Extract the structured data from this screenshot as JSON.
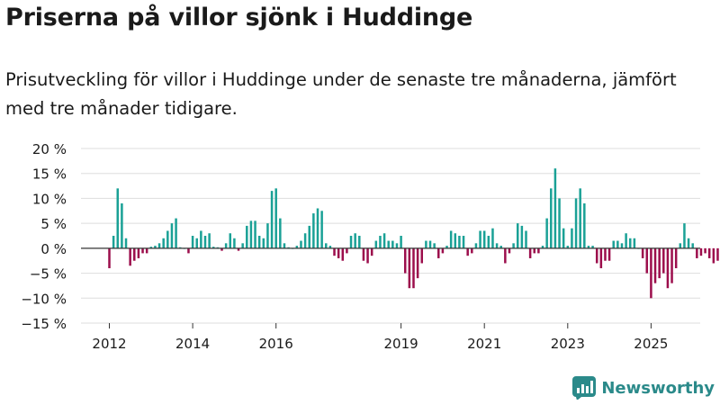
{
  "title": "Priserna på villor sjönk i Huddinge",
  "subtitle": "Prisutveckling för villor i Huddinge under de senaste tre månaderna, jämfört med tre månader tidigare.",
  "brand": {
    "name": "Newsworthy",
    "logo_icon": "bar-chart-logo-icon"
  },
  "colors": {
    "positive": "#1aa196",
    "negative": "#9c0e4c",
    "axis": "#333333",
    "grid": "#dddddd",
    "brand": "#2b8a8a"
  },
  "chart_data": {
    "type": "bar",
    "title": "",
    "xlabel": "",
    "ylabel": "",
    "ylim": [
      -15,
      20
    ],
    "y_ticks": [
      {
        "value": 20,
        "label": "20 %"
      },
      {
        "value": 15,
        "label": "15 %"
      },
      {
        "value": 10,
        "label": "10 %"
      },
      {
        "value": 5,
        "label": "5 %"
      },
      {
        "value": 0,
        "label": "0 %"
      },
      {
        "value": -5,
        "label": "−5 %"
      },
      {
        "value": -10,
        "label": "−10 %"
      },
      {
        "value": -15,
        "label": "−15 %"
      }
    ],
    "x_ticks": [
      {
        "index": 0,
        "label": "2012"
      },
      {
        "index": 20,
        "label": "2014"
      },
      {
        "index": 40,
        "label": "2016"
      },
      {
        "index": 70,
        "label": "2019"
      },
      {
        "index": 90,
        "label": "2021"
      },
      {
        "index": 110,
        "label": "2023"
      },
      {
        "index": 130,
        "label": "2025"
      }
    ],
    "grid": true,
    "series": [
      {
        "values": [
          -4,
          2.5,
          12,
          9,
          2,
          -3.5,
          -2.5,
          -2,
          -1,
          -1,
          0.3,
          0.5,
          1,
          2,
          3.5,
          5,
          6,
          0.2,
          0,
          -1,
          2.5,
          2,
          3.5,
          2.5,
          3,
          0.3,
          0.2,
          -0.5,
          1,
          3,
          2,
          -0.5,
          1,
          4.5,
          5.5,
          5.5,
          2.5,
          2,
          5,
          11.5,
          12,
          6,
          1,
          0.2,
          0,
          0.5,
          1.5,
          3,
          4.5,
          7,
          8,
          7.5,
          1,
          0.5,
          -1.5,
          -2,
          -2.5,
          -1,
          2.5,
          3,
          2.5,
          -2.5,
          -3,
          -1.5,
          1.5,
          2.5,
          3,
          1.5,
          1.5,
          1,
          2.5,
          -5,
          -8,
          -8,
          -6,
          -3,
          1.5,
          1.5,
          1,
          -2,
          -1,
          0.5,
          3.5,
          3,
          2.5,
          2.5,
          -1.5,
          -1,
          1,
          3.5,
          3.5,
          2.5,
          4,
          1,
          0.5,
          -3,
          -1,
          1,
          5,
          4.5,
          3.5,
          -2,
          -1,
          -1,
          0.5,
          6,
          12,
          16,
          10,
          4,
          0.5,
          4,
          10,
          12,
          9,
          0.5,
          0.5,
          -3,
          -4,
          -2.5,
          -2.5,
          1.5,
          1.5,
          1,
          3,
          2,
          2,
          0,
          -2,
          -5,
          -10,
          -7,
          -6,
          -5,
          -8,
          -7,
          -4,
          1,
          5,
          2,
          1,
          -2,
          -1.5,
          -1,
          -2,
          -3,
          -2.5,
          -3,
          -1.5,
          -1,
          2,
          6,
          7,
          7,
          1,
          -3,
          -5,
          -3,
          0,
          0,
          2,
          4,
          3,
          0,
          -1,
          -4
        ]
      }
    ],
    "annotation": {
      "label": "−4 %",
      "value": -4
    }
  }
}
